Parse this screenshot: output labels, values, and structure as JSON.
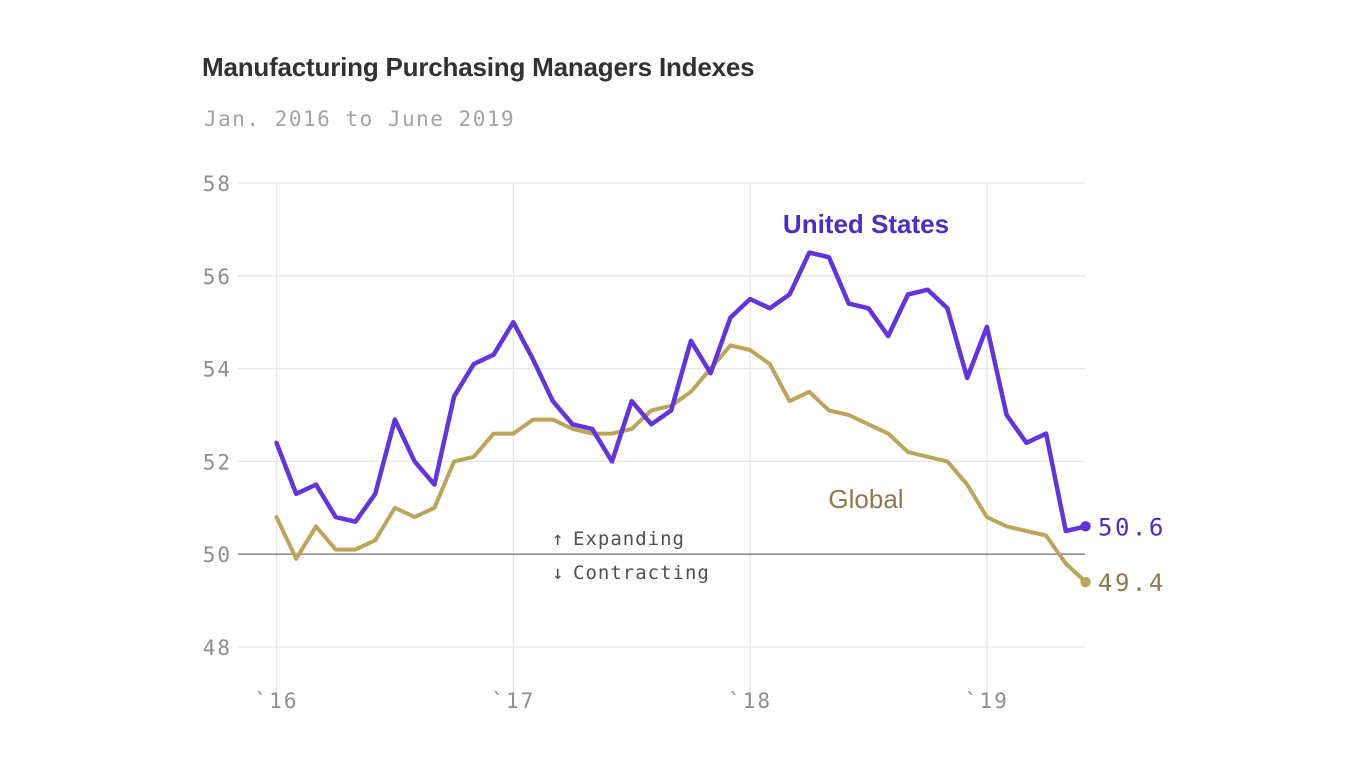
{
  "header": {
    "title": "Manufacturing Purchasing Managers Indexes",
    "subtitle": "Jan. 2016 to June 2019"
  },
  "chart_data": {
    "type": "line",
    "title": "Manufacturing Purchasing Managers Indexes",
    "subtitle": "Jan. 2016 to June 2019",
    "x_months": [
      "2016-01",
      "2016-02",
      "2016-03",
      "2016-04",
      "2016-05",
      "2016-06",
      "2016-07",
      "2016-08",
      "2016-09",
      "2016-10",
      "2016-11",
      "2016-12",
      "2017-01",
      "2017-02",
      "2017-03",
      "2017-04",
      "2017-05",
      "2017-06",
      "2017-07",
      "2017-08",
      "2017-09",
      "2017-10",
      "2017-11",
      "2017-12",
      "2018-01",
      "2018-02",
      "2018-03",
      "2018-04",
      "2018-05",
      "2018-06",
      "2018-07",
      "2018-08",
      "2018-09",
      "2018-10",
      "2018-11",
      "2018-12",
      "2019-01",
      "2019-02",
      "2019-03",
      "2019-04",
      "2019-05",
      "2019-06"
    ],
    "x_ticks": [
      {
        "label": "`16",
        "month": 0
      },
      {
        "label": "`17",
        "month": 12
      },
      {
        "label": "`18",
        "month": 24
      },
      {
        "label": "`19",
        "month": 36
      }
    ],
    "y_ticks": [
      58,
      56,
      54,
      52,
      50,
      48
    ],
    "ylim": [
      48,
      58
    ],
    "grid": true,
    "legend_position": "inline-annotations",
    "reference_line": {
      "value": 50,
      "above_arrow": "↑",
      "above_label": "Expanding",
      "below_arrow": "↓",
      "below_label": "Contracting"
    },
    "series": [
      {
        "name": "United States",
        "line_color": "#6134e0",
        "label_color": "#4a2ecb",
        "end_label": "50.6",
        "values": [
          52.4,
          51.3,
          51.5,
          50.8,
          50.7,
          51.3,
          52.9,
          52.0,
          51.5,
          53.4,
          54.1,
          54.3,
          55.0,
          54.2,
          53.3,
          52.8,
          52.7,
          52.0,
          53.3,
          52.8,
          53.1,
          54.6,
          53.9,
          55.1,
          55.5,
          55.3,
          55.6,
          56.5,
          56.4,
          55.4,
          55.3,
          54.7,
          55.6,
          55.7,
          55.3,
          53.8,
          54.9,
          53.0,
          52.4,
          52.6,
          50.5,
          50.6
        ]
      },
      {
        "name": "Global",
        "line_color": "#bca55a",
        "label_color": "#8b7c50",
        "end_label": "49.4",
        "values": [
          50.8,
          49.9,
          50.6,
          50.1,
          50.1,
          50.3,
          51.0,
          50.8,
          51.0,
          52.0,
          52.1,
          52.6,
          52.6,
          52.9,
          52.9,
          52.7,
          52.6,
          52.6,
          52.7,
          53.1,
          53.2,
          53.5,
          54.0,
          54.5,
          54.4,
          54.1,
          53.3,
          53.5,
          53.1,
          53.0,
          52.8,
          52.6,
          52.2,
          52.1,
          52.0,
          51.5,
          50.8,
          50.6,
          50.5,
          50.4,
          49.8,
          49.4
        ]
      }
    ],
    "series_label_positions": [
      {
        "x": 866,
        "y": 233
      },
      {
        "x": 866,
        "y": 508
      }
    ],
    "colors": {
      "grid": "#e6e6e6",
      "reference_line": "#7d7d7d",
      "tick_text": "#8e8e8e",
      "annotation_text": "#4f4f4f",
      "title_text": "#313131",
      "subtitle_text": "#a3a3a3",
      "background": "#ffffff"
    }
  }
}
